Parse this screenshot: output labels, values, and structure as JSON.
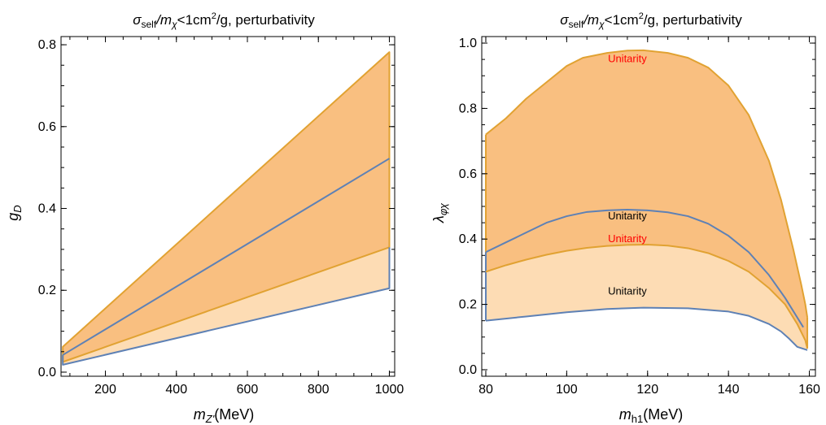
{
  "chart_data": [
    {
      "type": "area",
      "title": "σself/mχ<1cm²/g, perturbativity",
      "title_parts": {
        "sigma": "σ",
        "self": "self",
        "slash_m": "/m",
        "chi": "χ",
        "rest": "<1cm",
        "sq": "2",
        "tail": "/g, perturbativity"
      },
      "xlabel": "mZ'(MeV)",
      "xlabel_parts": {
        "m": "m",
        "sub": "Z'",
        "unit": "(MeV)"
      },
      "ylabel": "gD",
      "ylabel_parts": {
        "g": "g",
        "sub": "D"
      },
      "xlim": [
        75,
        1015
      ],
      "ylim": [
        -0.01,
        0.82
      ],
      "xticks": [
        200,
        400,
        600,
        800,
        1000
      ],
      "xtick_labels": [
        "200",
        "400",
        "600",
        "800",
        "1000"
      ],
      "yticks": [
        0.0,
        0.2,
        0.4,
        0.6,
        0.8
      ],
      "ytick_labels": [
        "0.0",
        "0.2",
        "0.4",
        "0.6",
        "0.8"
      ],
      "colors": {
        "dark_fill": "#f9bf80",
        "light_fill": "#fddcb4",
        "orange_line": "#e1a232",
        "blue_line": "#5e81b5"
      },
      "regions": [
        {
          "fill": "light",
          "x": [
            80,
            1000
          ],
          "upper": [
            0.025,
            0.305
          ],
          "lower": [
            0.018,
            0.205
          ]
        },
        {
          "fill": "dark",
          "x": [
            80,
            1000
          ],
          "upper": [
            0.062,
            0.782
          ],
          "lower": [
            0.025,
            0.305
          ]
        }
      ],
      "series": [
        {
          "color": "orange",
          "x": [
            80,
            80,
            1000,
            1000
          ],
          "y": [
            0.025,
            0.062,
            0.782,
            0.305
          ]
        },
        {
          "color": "orange",
          "x": [
            80,
            1000
          ],
          "y": [
            0.025,
            0.305
          ]
        },
        {
          "color": "blue",
          "x": [
            80,
            1000
          ],
          "y": [
            0.042,
            0.522
          ]
        },
        {
          "color": "blue",
          "x": [
            80,
            80,
            1000,
            1000
          ],
          "y": [
            0.042,
            0.018,
            0.205,
            0.305
          ]
        }
      ],
      "annotations": []
    },
    {
      "type": "area",
      "title": "σself/mχ<1cm²/g, perturbativity",
      "title_parts": {
        "sigma": "σ",
        "self": "self",
        "slash_m": "/m",
        "chi": "χ",
        "rest": "<1cm",
        "sq": "2",
        "tail": "/g, perturbativity"
      },
      "xlabel": "mh1(MeV)",
      "xlabel_parts": {
        "m": "m",
        "sub": "h1",
        "unit": "(MeV)"
      },
      "ylabel": "λφχ",
      "ylabel_parts": {
        "lambda": "λ",
        "sub": "φχ"
      },
      "xlim": [
        79,
        161.5
      ],
      "ylim": [
        -0.02,
        1.02
      ],
      "xticks": [
        80,
        100,
        120,
        140,
        160
      ],
      "xtick_labels": [
        "80",
        "100",
        "120",
        "140",
        "160"
      ],
      "yticks": [
        0.0,
        0.2,
        0.4,
        0.6,
        0.8,
        1.0
      ],
      "ytick_labels": [
        "0.0",
        "0.2",
        "0.4",
        "0.6",
        "0.8",
        "1.0"
      ],
      "colors": {
        "dark_fill": "#f9bf80",
        "light_fill": "#fddcb4",
        "orange_line": "#e1a232",
        "blue_line": "#5e81b5",
        "red_text": "#ff0000",
        "black_text": "#000000"
      },
      "curves": {
        "orange_upper": {
          "x": [
            80,
            85,
            90,
            95,
            100,
            104,
            110,
            115,
            119,
            125,
            130,
            135,
            140,
            145,
            150,
            153,
            156,
            158,
            159,
            159.5
          ],
          "y": [
            0.72,
            0.77,
            0.83,
            0.88,
            0.93,
            0.955,
            0.97,
            0.977,
            0.978,
            0.97,
            0.955,
            0.925,
            0.87,
            0.78,
            0.64,
            0.52,
            0.37,
            0.26,
            0.2,
            0.16
          ]
        },
        "blue_upper": {
          "x": [
            80,
            85,
            90,
            95,
            100,
            105,
            110,
            115,
            120,
            125,
            130,
            135,
            140,
            145,
            150,
            154,
            157,
            158.5
          ],
          "y": [
            0.36,
            0.39,
            0.42,
            0.45,
            0.47,
            0.483,
            0.488,
            0.49,
            0.488,
            0.482,
            0.47,
            0.447,
            0.41,
            0.36,
            0.29,
            0.22,
            0.16,
            0.13
          ]
        },
        "orange_lower": {
          "x": [
            80,
            85,
            90,
            95,
            100,
            105,
            110,
            115,
            120,
            125,
            130,
            135,
            140,
            145,
            150,
            154,
            157,
            159,
            159.5
          ],
          "y": [
            0.3,
            0.32,
            0.337,
            0.352,
            0.364,
            0.373,
            0.379,
            0.382,
            0.383,
            0.38,
            0.372,
            0.357,
            0.333,
            0.3,
            0.25,
            0.2,
            0.14,
            0.09,
            0.065
          ]
        },
        "blue_lower": {
          "x": [
            80,
            90,
            100,
            110,
            119,
            130,
            140,
            145,
            150,
            153,
            155,
            157,
            159.5
          ],
          "y": [
            0.15,
            0.163,
            0.176,
            0.186,
            0.19,
            0.188,
            0.178,
            0.165,
            0.14,
            0.117,
            0.095,
            0.07,
            0.06
          ]
        }
      },
      "annotations": [
        {
          "text": "Unitarity",
          "x": 115,
          "y": 0.952,
          "color": "red"
        },
        {
          "text": "Unitarity",
          "x": 115,
          "y": 0.47,
          "color": "black"
        },
        {
          "text": "Unitarity",
          "x": 115,
          "y": 0.4,
          "color": "red"
        },
        {
          "text": "Unitarity",
          "x": 115,
          "y": 0.24,
          "color": "black"
        }
      ]
    }
  ]
}
